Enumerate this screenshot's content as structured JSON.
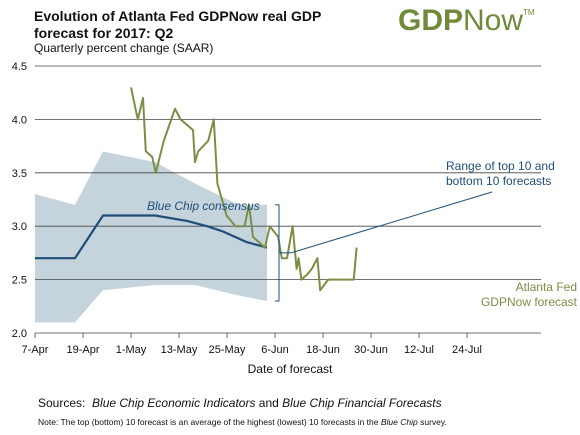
{
  "header": {
    "title": "Evolution of Atlanta Fed GDPNow real GDP forecast for 2017: Q2",
    "subtitle": "Quarterly percent change (SAAR)",
    "logo_gdp": "GDP",
    "logo_now": "Now",
    "logo_mark": "TM"
  },
  "footer": {
    "sources_prefix": "Sources:",
    "source1": "Blue Chip Economic Indicators",
    "sources_and": "and",
    "source2": "Blue Chip Financial Forecasts",
    "note_prefix": "Note:  The top (bottom) 10 forecast is an average of the highest (lowest) 10 forecasts in the",
    "note_italic": "Blue Chip",
    "note_suffix": "survey."
  },
  "colors": {
    "gdpnow": "#7a8f45",
    "consensus": "#1f4e79",
    "range": "#c5d3dc",
    "annotation": "#1f4e79",
    "grid": "#444444"
  },
  "chart_data": {
    "type": "line",
    "xlabel": "Date of forecast",
    "ylim": [
      2.0,
      4.5
    ],
    "yticks": [
      "2.0",
      "2.5",
      "3.0",
      "3.5",
      "4.0",
      "4.5"
    ],
    "xticks": [
      "7-Apr",
      "19-Apr",
      "1-May",
      "13-May",
      "25-May",
      "6-Jun",
      "18-Jun",
      "30-Jun",
      "12-Jul",
      "24-Jul"
    ],
    "grid": true,
    "range_band": {
      "name": "Range of top 10 and bottom 10 forecasts",
      "top": [
        [
          0,
          3.3
        ],
        [
          10,
          3.2
        ],
        [
          17,
          3.7
        ],
        [
          30,
          3.6
        ],
        [
          40,
          3.4
        ],
        [
          51,
          3.2
        ],
        [
          58,
          3.2
        ]
      ],
      "bottom": [
        [
          0,
          2.1
        ],
        [
          10,
          2.1
        ],
        [
          17,
          2.4
        ],
        [
          30,
          2.45
        ],
        [
          40,
          2.45
        ],
        [
          51,
          2.35
        ],
        [
          58,
          2.3
        ]
      ]
    },
    "series": [
      {
        "name": "Blue Chip consensus",
        "points": [
          [
            0,
            2.7
          ],
          [
            10,
            2.7
          ],
          [
            17,
            3.1
          ],
          [
            30,
            3.1
          ],
          [
            38,
            3.05
          ],
          [
            43,
            3.0
          ],
          [
            47,
            2.95
          ],
          [
            53,
            2.85
          ],
          [
            58,
            2.8
          ]
        ]
      },
      {
        "name": "Atlanta Fed GDPNow forecast",
        "points": [
          [
            24,
            4.3
          ],
          [
            25.7,
            4.0
          ],
          [
            27,
            4.2
          ],
          [
            27.7,
            3.7
          ],
          [
            29.3,
            3.65
          ],
          [
            30.2,
            3.5
          ],
          [
            32.2,
            3.8
          ],
          [
            35,
            4.1
          ],
          [
            36.4,
            4.0
          ],
          [
            39.5,
            3.9
          ],
          [
            40,
            3.6
          ],
          [
            40.8,
            3.7
          ],
          [
            43.3,
            3.8
          ],
          [
            44.7,
            4.0
          ],
          [
            45.6,
            3.4
          ],
          [
            47.9,
            3.1
          ],
          [
            50.1,
            3.0
          ],
          [
            52.4,
            3.0
          ],
          [
            53.5,
            3.2
          ],
          [
            54.5,
            2.9
          ],
          [
            57.5,
            2.8
          ],
          [
            58.7,
            3.0
          ],
          [
            60.8,
            2.9
          ],
          [
            61.7,
            2.7
          ],
          [
            63,
            2.7
          ],
          [
            64.4,
            3.0
          ],
          [
            65.4,
            2.6
          ],
          [
            65.9,
            2.7
          ],
          [
            66.6,
            2.5
          ],
          [
            68.1,
            2.55
          ],
          [
            69.2,
            2.6
          ],
          [
            70.6,
            2.7
          ],
          [
            71.3,
            2.4
          ],
          [
            73.3,
            2.5
          ],
          [
            79.7,
            2.5
          ],
          [
            80.4,
            2.8
          ]
        ]
      }
    ],
    "annotations": [
      "Blue Chip consensus",
      "Range of top 10 and bottom 10 forecasts",
      "Atlanta Fed GDPNow forecast"
    ],
    "annotation_lines": {
      "range": [
        "Range of top 10 and",
        "bottom 10 forecasts"
      ],
      "gdpnow": [
        "Atlanta Fed",
        "GDPNow forecast"
      ]
    }
  }
}
